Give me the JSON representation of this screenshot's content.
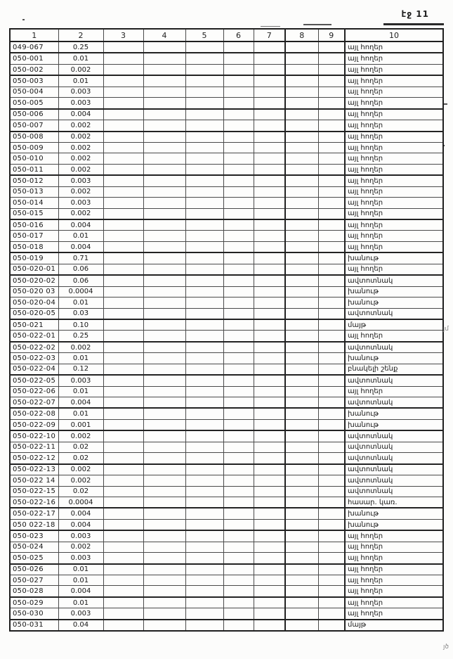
{
  "page": {
    "label": "էջ 11"
  },
  "table": {
    "headers": [
      "1",
      "2",
      "3",
      "4",
      "5",
      "6",
      "7",
      "8",
      "9",
      "10"
    ],
    "rows": [
      [
        "049-067",
        "0.25",
        "այլ հողեր"
      ],
      [
        "050-001",
        "0.01",
        "այլ հողեր"
      ],
      [
        "050-002",
        "0.002",
        "այլ հողեր"
      ],
      [
        "050-003",
        "0.01",
        "այլ հողեր"
      ],
      [
        "050-004",
        "0.003",
        "այլ հողեր"
      ],
      [
        "050-005",
        "0.003",
        "այլ հողեր"
      ],
      [
        "050-006",
        "0.004",
        "այլ հողեր"
      ],
      [
        "050-007",
        "0.002",
        "այլ հողեր"
      ],
      [
        "050-008",
        "0.002",
        "այլ հողեր"
      ],
      [
        "050-009",
        "0.002",
        "այլ հողեր"
      ],
      [
        "050-010",
        "0.002",
        "այլ հողեր"
      ],
      [
        "050-011",
        "0.002",
        "այլ հողեր"
      ],
      [
        "050-012",
        "0.003",
        "այլ հողեր"
      ],
      [
        "050-013",
        "0.002",
        "այլ հողեր"
      ],
      [
        "050-014",
        "0.003",
        "այլ հողեր"
      ],
      [
        "050-015",
        "0.002",
        "այլ հողեր"
      ],
      [
        "050-016",
        "0.004",
        "այլ հողեր"
      ],
      [
        "050-017",
        "0.01",
        "այլ հողեր"
      ],
      [
        "050-018",
        "0.004",
        "այլ հողեր"
      ],
      [
        "050-019",
        "0.71",
        "խանութ"
      ],
      [
        "050-020-01",
        "0.06",
        "այլ հողեր"
      ],
      [
        "050-020-02",
        "0.06",
        "ավտոտնակ"
      ],
      [
        "050-020 03",
        "0.0004",
        "խանութ"
      ],
      [
        "050-020-04",
        "0.01",
        "խանութ"
      ],
      [
        "050-020-05",
        "0.03",
        "ավտոտնակ"
      ],
      [
        "050-021",
        "0.10",
        "մայթ"
      ],
      [
        "050-022-01",
        "0.25",
        "այլ հողեր"
      ],
      [
        "050-022-02",
        "0.002",
        "ավտոտնակ"
      ],
      [
        "050-022-03",
        "0.01",
        "խանութ"
      ],
      [
        "050-022-04",
        "0.12",
        "բնակելի շենք"
      ],
      [
        "050-022-05",
        "0.003",
        "ավտոտնակ"
      ],
      [
        "050-022-06",
        "0.01",
        "այլ հողեր"
      ],
      [
        "050-022-07",
        "0.004",
        "ավտոտնակ"
      ],
      [
        "050-022-08",
        "0.01",
        "խանութ"
      ],
      [
        "050-022-09",
        "0.001",
        "խանութ"
      ],
      [
        "050-022-10",
        "0.002",
        "ավտոտնակ"
      ],
      [
        "050-022-11",
        "0.02",
        "ավտոտնակ"
      ],
      [
        "050-022-12",
        "0.02",
        "ավտոտնակ"
      ],
      [
        "050-022-13",
        "0.002",
        "ավտոտնակ"
      ],
      [
        "050-022 14",
        "0.002",
        "ավտոտնակ"
      ],
      [
        "050-022-15",
        "0.02",
        "ավտոտնակ"
      ],
      [
        "050-022-16",
        "0.0004",
        "հասար. կառ."
      ],
      [
        "050-022-17",
        "0.004",
        "խանութ"
      ],
      [
        "050 022-18",
        "0.004",
        "խանութ"
      ],
      [
        "050-023",
        "0.003",
        "այլ հողեր"
      ],
      [
        "050-024",
        "0.002",
        "այլ հողեր"
      ],
      [
        "050-025",
        "0.003",
        "այլ հողեր"
      ],
      [
        "050-026",
        "0.01",
        "այլ հողեր"
      ],
      [
        "050-027",
        "0.01",
        "այլ հողեր"
      ],
      [
        "050-028",
        "0.004",
        "այլ հողեր"
      ],
      [
        "050-029",
        "0.01",
        "այլ հողեր"
      ],
      [
        "050-030",
        "0.003",
        "այլ հողեր"
      ],
      [
        "050-031",
        "0.04",
        "մայթ"
      ]
    ]
  },
  "margin_notes": [
    {
      "text": "յմ"
    },
    {
      "text": "յծ"
    }
  ]
}
